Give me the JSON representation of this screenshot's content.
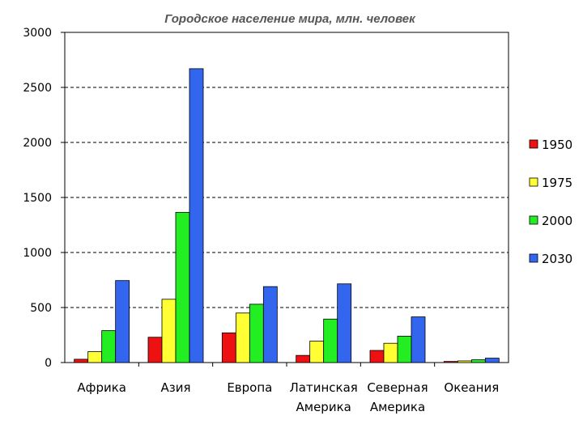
{
  "chart_data": {
    "type": "bar",
    "title": "Городское население мира, млн. человек",
    "xlabel": "",
    "ylabel": "",
    "ylim": [
      0,
      3000
    ],
    "yticks": [
      0,
      500,
      1000,
      1500,
      2000,
      2500,
      3000
    ],
    "grid": "dashed horizontal",
    "legend_position": "right",
    "categories": [
      [
        "Африка"
      ],
      [
        "Азия"
      ],
      [
        "Европа"
      ],
      [
        "Латинская",
        "Америка"
      ],
      [
        "Северная",
        "Америка"
      ],
      [
        "Океания"
      ]
    ],
    "series": [
      {
        "name": "1950",
        "color": "#ee1111",
        "values": [
          30,
          230,
          270,
          65,
          110,
          10
        ]
      },
      {
        "name": "1975",
        "color": "#ffff33",
        "values": [
          100,
          575,
          450,
          195,
          175,
          15
        ]
      },
      {
        "name": "2000",
        "color": "#22ee22",
        "values": [
          290,
          1365,
          530,
          395,
          240,
          25
        ]
      },
      {
        "name": "2030",
        "color": "#3366ee",
        "values": [
          745,
          2670,
          690,
          715,
          415,
          40
        ]
      }
    ]
  }
}
